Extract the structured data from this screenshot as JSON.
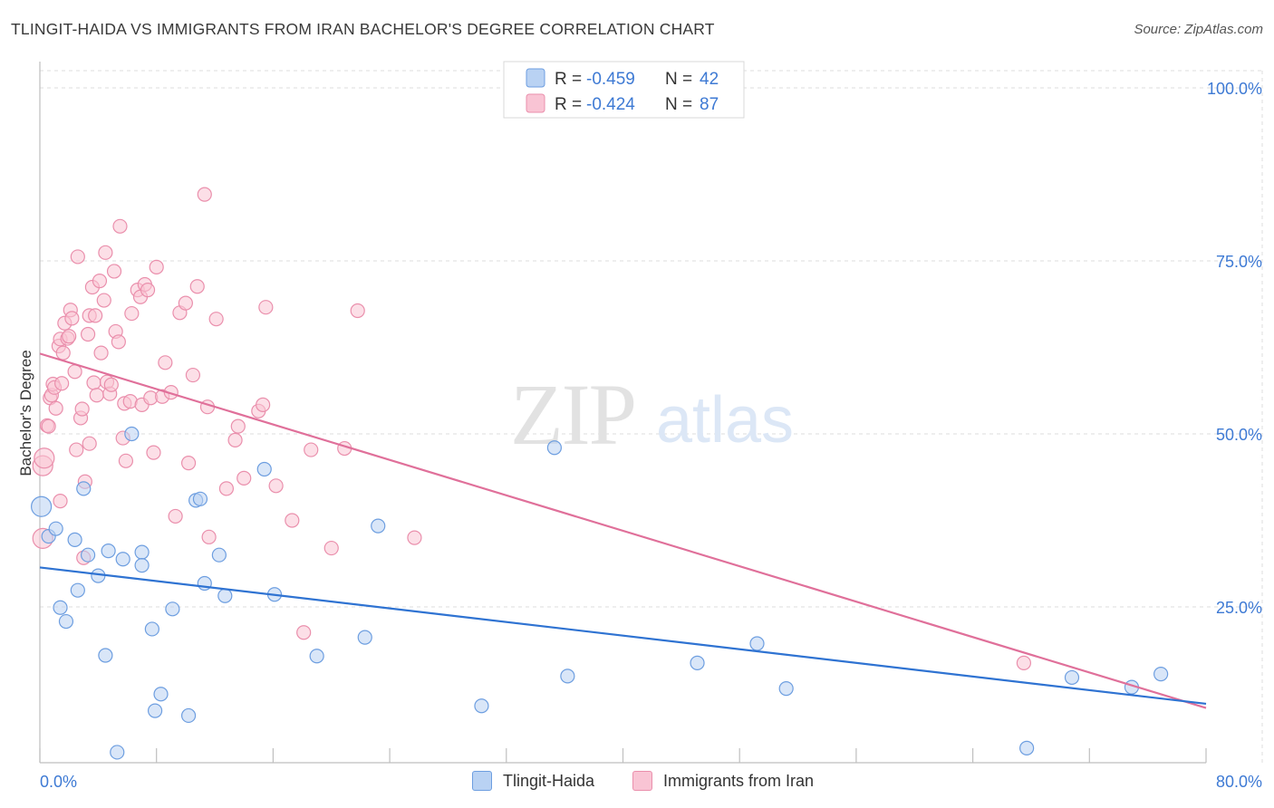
{
  "header": {
    "title": "TLINGIT-HAIDA VS IMMIGRANTS FROM IRAN BACHELOR'S DEGREE CORRELATION CHART",
    "source": "Source: ZipAtlas.com"
  },
  "watermark": {
    "zip": "ZIP",
    "atlas": "atlas"
  },
  "colors": {
    "blue_fill": "#b9d2f3",
    "blue_stroke": "#6d9ee0",
    "blue_line": "#2f73d2",
    "pink_fill": "#f9c4d4",
    "pink_stroke": "#ea8fac",
    "pink_line": "#e0709a",
    "tick_label": "#3e7ad4",
    "grid": "#dedede"
  },
  "chart_data": {
    "type": "scatter",
    "title": "TLINGIT-HAIDA VS IMMIGRANTS FROM IRAN BACHELOR'S DEGREE CORRELATION CHART",
    "xlabel": "",
    "ylabel": "Bachelor's Degree",
    "xlim": [
      0,
      80
    ],
    "ylim": [
      0,
      100
    ],
    "x_tick_labels": [
      "0.0%",
      "80.0%"
    ],
    "y_ticks": [
      {
        "value": 100,
        "label": "100.0%"
      },
      {
        "value": 75,
        "label": "75.0%"
      },
      {
        "value": 50,
        "label": "50.0%"
      },
      {
        "value": 25,
        "label": "25.0%"
      }
    ],
    "grid": true,
    "legend_position": "top-center",
    "stats": [
      {
        "r_label": "R =",
        "r_value": "-0.459",
        "n_label": "N =",
        "n_value": "42"
      },
      {
        "r_label": "R =",
        "r_value": "-0.424",
        "n_label": "N =",
        "n_value": "87"
      }
    ],
    "series": [
      {
        "name": "Tlingit-Haida",
        "color": "#6d9ee0",
        "trend": {
          "x": [
            0,
            80
          ],
          "y": [
            30.7,
            11.0
          ]
        },
        "points": [
          [
            0.1,
            39.5
          ],
          [
            0.6,
            35.2
          ],
          [
            1.1,
            36.3
          ],
          [
            1.4,
            24.9
          ],
          [
            1.8,
            22.9
          ],
          [
            2.4,
            34.7
          ],
          [
            2.6,
            27.4
          ],
          [
            3.0,
            42.1
          ],
          [
            3.3,
            32.5
          ],
          [
            4.0,
            29.5
          ],
          [
            4.5,
            18.0
          ],
          [
            4.7,
            33.1
          ],
          [
            5.3,
            4.0
          ],
          [
            5.7,
            31.9
          ],
          [
            6.3,
            50.0
          ],
          [
            7.0,
            32.9
          ],
          [
            7.0,
            31.0
          ],
          [
            7.7,
            21.8
          ],
          [
            7.9,
            10.0
          ],
          [
            8.3,
            12.4
          ],
          [
            9.1,
            24.7
          ],
          [
            10.2,
            9.3
          ],
          [
            10.7,
            40.4
          ],
          [
            11.0,
            40.6
          ],
          [
            11.3,
            28.4
          ],
          [
            12.3,
            32.5
          ],
          [
            12.7,
            26.6
          ],
          [
            15.4,
            44.9
          ],
          [
            16.1,
            26.8
          ],
          [
            19.0,
            17.9
          ],
          [
            22.3,
            20.6
          ],
          [
            23.2,
            36.7
          ],
          [
            30.3,
            10.7
          ],
          [
            35.3,
            48.0
          ],
          [
            36.2,
            15.0
          ],
          [
            45.1,
            16.9
          ],
          [
            49.2,
            19.7
          ],
          [
            51.2,
            13.2
          ],
          [
            67.7,
            4.6
          ],
          [
            70.8,
            14.8
          ],
          [
            74.9,
            13.4
          ],
          [
            76.9,
            15.3
          ]
        ]
      },
      {
        "name": "Immigrants from Iran",
        "color": "#ea8fac",
        "trend": {
          "x": [
            0,
            80
          ],
          "y": [
            61.6,
            10.4
          ]
        },
        "points": [
          [
            0.2,
            34.9
          ],
          [
            0.2,
            45.4
          ],
          [
            0.3,
            46.5
          ],
          [
            0.5,
            51.2
          ],
          [
            0.6,
            51.1
          ],
          [
            0.7,
            55.2
          ],
          [
            0.8,
            55.6
          ],
          [
            0.9,
            57.2
          ],
          [
            1.0,
            56.7
          ],
          [
            1.1,
            53.7
          ],
          [
            1.3,
            62.7
          ],
          [
            1.4,
            63.7
          ],
          [
            1.4,
            40.3
          ],
          [
            1.5,
            57.3
          ],
          [
            1.6,
            61.7
          ],
          [
            1.7,
            66.0
          ],
          [
            1.9,
            63.8
          ],
          [
            2.0,
            64.1
          ],
          [
            2.1,
            67.9
          ],
          [
            2.2,
            66.7
          ],
          [
            2.4,
            59.0
          ],
          [
            2.5,
            47.7
          ],
          [
            2.6,
            75.6
          ],
          [
            2.8,
            52.3
          ],
          [
            2.9,
            53.6
          ],
          [
            3.0,
            32.1
          ],
          [
            3.1,
            43.1
          ],
          [
            3.3,
            64.4
          ],
          [
            3.4,
            67.1
          ],
          [
            3.4,
            48.6
          ],
          [
            3.6,
            71.2
          ],
          [
            3.7,
            57.4
          ],
          [
            3.8,
            67.1
          ],
          [
            3.9,
            55.6
          ],
          [
            4.1,
            72.1
          ],
          [
            4.2,
            61.7
          ],
          [
            4.4,
            69.3
          ],
          [
            4.5,
            76.2
          ],
          [
            4.6,
            57.5
          ],
          [
            4.8,
            55.8
          ],
          [
            4.9,
            57.1
          ],
          [
            5.1,
            73.5
          ],
          [
            5.2,
            64.8
          ],
          [
            5.4,
            63.3
          ],
          [
            5.5,
            80.0
          ],
          [
            5.7,
            49.4
          ],
          [
            5.8,
            54.4
          ],
          [
            5.9,
            46.1
          ],
          [
            6.2,
            54.7
          ],
          [
            6.3,
            67.4
          ],
          [
            6.7,
            70.8
          ],
          [
            6.9,
            69.8
          ],
          [
            7.0,
            54.2
          ],
          [
            7.2,
            71.6
          ],
          [
            7.4,
            70.8
          ],
          [
            7.6,
            55.2
          ],
          [
            7.8,
            47.3
          ],
          [
            8.0,
            74.1
          ],
          [
            8.4,
            55.4
          ],
          [
            8.6,
            60.3
          ],
          [
            9.0,
            56.0
          ],
          [
            9.3,
            38.1
          ],
          [
            9.6,
            67.5
          ],
          [
            10.0,
            68.9
          ],
          [
            10.2,
            45.8
          ],
          [
            10.5,
            58.5
          ],
          [
            10.8,
            71.3
          ],
          [
            11.3,
            84.6
          ],
          [
            11.5,
            53.9
          ],
          [
            11.6,
            35.1
          ],
          [
            12.1,
            66.6
          ],
          [
            12.8,
            42.1
          ],
          [
            13.4,
            49.1
          ],
          [
            13.6,
            51.1
          ],
          [
            14.0,
            43.6
          ],
          [
            15.0,
            53.3
          ],
          [
            15.3,
            54.2
          ],
          [
            15.5,
            68.3
          ],
          [
            16.2,
            42.5
          ],
          [
            17.3,
            37.5
          ],
          [
            18.1,
            21.3
          ],
          [
            18.6,
            47.7
          ],
          [
            20.0,
            33.5
          ],
          [
            20.9,
            47.9
          ],
          [
            21.8,
            67.8
          ],
          [
            25.7,
            35.0
          ],
          [
            67.5,
            16.9
          ]
        ]
      }
    ]
  }
}
